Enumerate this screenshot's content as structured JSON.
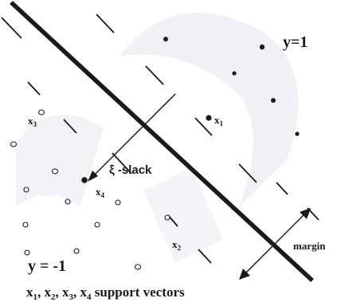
{
  "labels": {
    "positive_class": "y=1",
    "negative_class": "y = -1",
    "slack": "ξ -slack",
    "margin": "margin",
    "x1": "x",
    "x1_sub": "1",
    "x2": "x",
    "x2_sub": "2",
    "x3": "x",
    "x3_sub": "3",
    "x4": "x",
    "x4_sub": "4",
    "caption": {
      "x": "x",
      "sub1": "1",
      "sub2": "2",
      "sub3": "3",
      "sub4": "4",
      "sep": ", ",
      "suffix": " support vectors"
    }
  },
  "colors": {
    "line": "#1a1a1a",
    "background": "#ffffff",
    "watermark": "#eef0f6"
  }
}
